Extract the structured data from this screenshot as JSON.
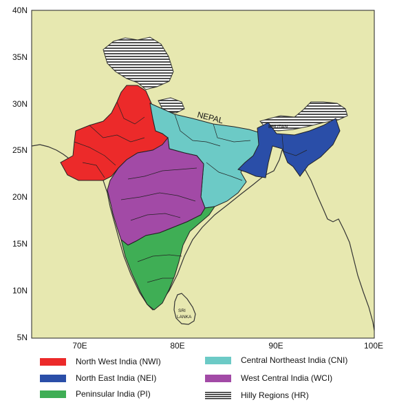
{
  "axes": {
    "y_ticks": [
      "40N",
      "35N",
      "30N",
      "25N",
      "20N",
      "15N",
      "10N",
      "5N"
    ],
    "x_ticks": [
      "70E",
      "80E",
      "90E",
      "100E"
    ]
  },
  "map": {
    "background_color": "#e7e8b0",
    "labels": {
      "nepal": "NEPAL",
      "bhutan": "BHUTAN",
      "sri_lanka_1": "SRI",
      "sri_lanka_2": "LANKA"
    }
  },
  "legend": [
    {
      "label": "North West India (NWI)",
      "color": "#ec2a2a"
    },
    {
      "label": "Central Northeast India (CNI)",
      "color": "#6ccac6"
    },
    {
      "label": "North East India (NEI)",
      "color": "#2a4ea8"
    },
    {
      "label": "West Central India (WCI)",
      "color": "#a24aa6"
    },
    {
      "label": "Peninsular India (PI)",
      "color": "#3fae55"
    },
    {
      "label": "Hilly Regions (HR)",
      "color": "#1a1a1a",
      "icon": "hatched-lines"
    }
  ]
}
